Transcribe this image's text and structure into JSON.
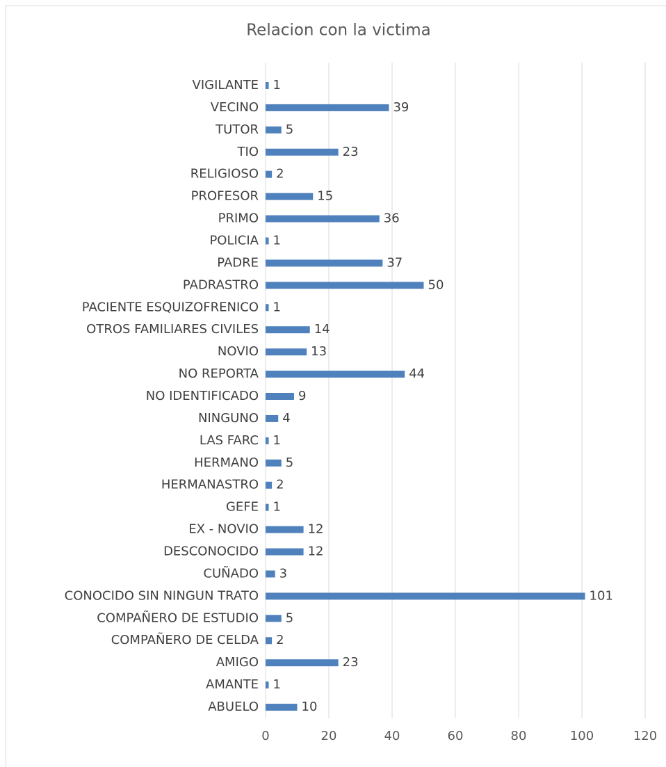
{
  "chart_data": {
    "type": "bar",
    "orientation": "horizontal",
    "title": "Relacion con la victima",
    "categories": [
      "VIGILANTE",
      "VECINO",
      "TUTOR",
      "TIO",
      "RELIGIOSO",
      "PROFESOR",
      "PRIMO",
      "POLICIA",
      "PADRE",
      "PADRASTRO",
      "PACIENTE ESQUIZOFRENICO",
      "OTROS FAMILIARES CIVILES",
      "NOVIO",
      "NO REPORTA",
      "NO IDENTIFICADO",
      "NINGUNO",
      "LAS FARC",
      "HERMANO",
      "HERMANASTRO",
      "GEFE",
      "EX - NOVIO",
      "DESCONOCIDO",
      "CUÑADO",
      "CONOCIDO SIN NINGUN TRATO",
      "COMPAÑERO DE ESTUDIO",
      "COMPAÑERO DE CELDA",
      "AMIGO",
      "AMANTE",
      "ABUELO"
    ],
    "values": [
      1,
      39,
      5,
      23,
      2,
      15,
      36,
      1,
      37,
      50,
      1,
      14,
      13,
      44,
      9,
      4,
      1,
      5,
      2,
      1,
      12,
      12,
      3,
      101,
      5,
      2,
      23,
      1,
      10
    ],
    "color": "#4f81bd",
    "xlim": [
      0,
      120
    ],
    "xticks": [
      0,
      20,
      40,
      60,
      80,
      100,
      120
    ],
    "grid": true,
    "data_labels": true
  }
}
